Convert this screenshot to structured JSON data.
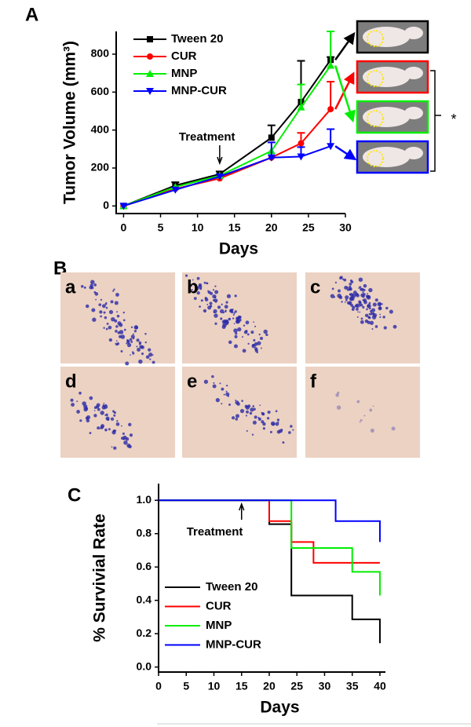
{
  "panel_labels": [
    "A",
    "B",
    "C"
  ],
  "micrographs": {
    "labels": [
      "a",
      "b",
      "c",
      "d",
      "e",
      "f"
    ]
  },
  "significance": "*",
  "chart_data": [
    {
      "type": "line",
      "x_label": "Days",
      "y_label": "Tumor Volume (mm³)",
      "x": [
        0,
        7,
        13,
        20,
        24,
        28
      ],
      "series": [
        {
          "name": "Tween 20",
          "color": "#000000",
          "marker": "square",
          "values": [
            0,
            108,
            168,
            360,
            548,
            770
          ],
          "errors": [
            null,
            17,
            14,
            65,
            217,
            15
          ]
        },
        {
          "name": "CUR",
          "color": "#ff0000",
          "marker": "circle",
          "values": [
            0,
            90,
            145,
            255,
            330,
            510
          ],
          "errors": [
            null,
            null,
            null,
            null,
            55,
            145
          ]
        },
        {
          "name": "MNP",
          "color": "#00ee00",
          "marker": "triangle-up",
          "values": [
            0,
            100,
            160,
            290,
            520,
            740
          ],
          "errors": [
            null,
            null,
            null,
            null,
            120,
            180
          ]
        },
        {
          "name": "MNP-CUR",
          "color": "#0000ff",
          "marker": "triangle-down",
          "values": [
            0,
            85,
            155,
            255,
            260,
            315
          ],
          "errors": [
            null,
            null,
            null,
            80,
            50,
            90
          ]
        }
      ],
      "xlim": [
        -1,
        30
      ],
      "xticks": [
        0,
        5,
        10,
        15,
        20,
        25,
        30
      ],
      "ylim": [
        -40,
        920
      ],
      "yticks": [
        0,
        200,
        400,
        600,
        800
      ],
      "legend": "upper left",
      "annotation": {
        "text": "Treatment",
        "x": 13
      }
    },
    {
      "type": "step",
      "x_label": "Days",
      "y_label": "% Survivial Rate",
      "series": [
        {
          "name": "Tween 20",
          "color": "#000000",
          "x": [
            0,
            20,
            24,
            35,
            40
          ],
          "values": [
            1,
            0.857,
            0.429,
            0.286,
            0.143
          ]
        },
        {
          "name": "CUR",
          "color": "#ff0000",
          "x": [
            0,
            20,
            24,
            28,
            40
          ],
          "values": [
            1,
            0.875,
            0.75,
            0.625,
            0.625
          ]
        },
        {
          "name": "MNP",
          "color": "#00ee00",
          "x": [
            0,
            24,
            35,
            40
          ],
          "values": [
            1,
            0.714,
            0.571,
            0.429
          ]
        },
        {
          "name": "MNP-CUR",
          "color": "#0000ff",
          "x": [
            0,
            32,
            40
          ],
          "values": [
            1,
            0.875,
            0.75
          ]
        }
      ],
      "xlim": [
        0,
        41
      ],
      "xticks": [
        0,
        5,
        10,
        15,
        20,
        25,
        30,
        35,
        40
      ],
      "ylim": [
        -0.03,
        1.1
      ],
      "yticks": [
        {
          "value": 0,
          "label": "0.0"
        },
        {
          "value": 0.2,
          "label": "0.2"
        },
        {
          "value": 0.4,
          "label": "0.4"
        },
        {
          "value": 0.6,
          "label": "0.6"
        },
        {
          "value": 0.8,
          "label": "0.8"
        },
        {
          "value": 1,
          "label": "1.0"
        }
      ],
      "legend": "lower left",
      "annotation": {
        "text": "Treatment",
        "x": 15
      }
    }
  ]
}
